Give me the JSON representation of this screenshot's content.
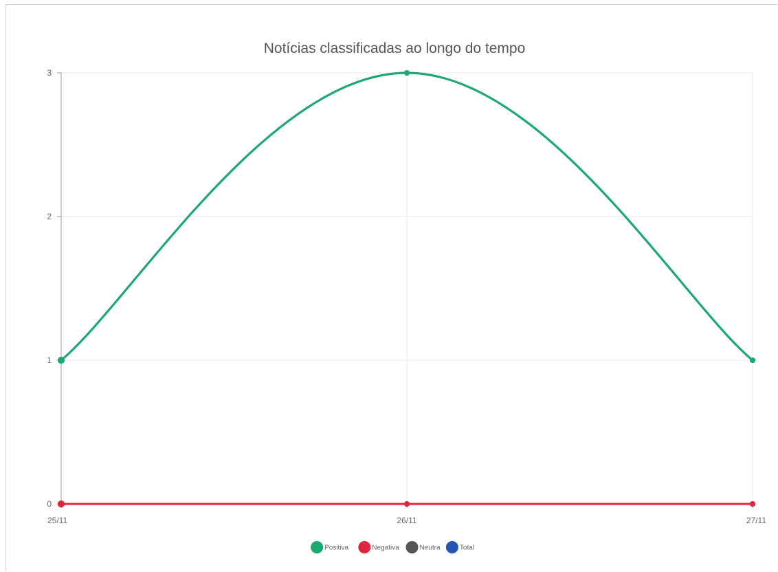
{
  "chart_data": {
    "type": "line",
    "title": "Notícias classificadas ao longo do tempo",
    "xlabel": "",
    "ylabel": "",
    "categories": [
      "25/11",
      "26/11",
      "27/11"
    ],
    "ylim": [
      0,
      3
    ],
    "yticks": [
      0,
      1,
      2,
      3
    ],
    "grid": true,
    "legend_position": "bottom",
    "curve": "smooth",
    "series": [
      {
        "name": "Positiva",
        "color": "#1aaa6e",
        "values": [
          1,
          3,
          1
        ]
      },
      {
        "name": "Negativa",
        "color": "#e0253c",
        "values": [
          0,
          0,
          0
        ]
      },
      {
        "name": "Neutra",
        "color": "#555555",
        "values": [
          0,
          0,
          0
        ]
      },
      {
        "name": "Total",
        "color": "#2756b0",
        "values": [
          1,
          3,
          1
        ]
      }
    ]
  }
}
